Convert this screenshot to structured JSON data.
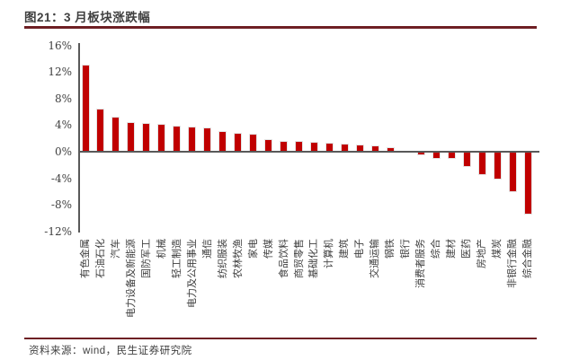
{
  "figure": {
    "title": "图21：3 月板块涨跌幅",
    "source": "资料来源：wind，民生证券研究院"
  },
  "colors": {
    "bar": "#C00000",
    "axis": "#595959",
    "rule": "#6e1f24",
    "text": "#404040"
  },
  "chart_data": {
    "type": "bar",
    "title": "3 月板块涨跌幅",
    "xlabel": "",
    "ylabel": "",
    "ylim": [
      -12,
      16
    ],
    "grid": false,
    "legend": "none",
    "bar_color": "#C00000",
    "yticks": [
      {
        "label": "16%",
        "value": 16
      },
      {
        "label": "12%",
        "value": 12
      },
      {
        "label": "8%",
        "value": 8
      },
      {
        "label": "4%",
        "value": 4
      },
      {
        "label": "0%",
        "value": 0
      },
      {
        "label": "-4%",
        "value": -4
      },
      {
        "label": "-8%",
        "value": -8
      },
      {
        "label": "-12%",
        "value": -12
      }
    ],
    "categories": [
      "有色金属",
      "石油石化",
      "汽车",
      "电力设备及新能源",
      "国防军工",
      "机械",
      "轻工制造",
      "电力及公用事业",
      "通信",
      "纺织服装",
      "农林牧渔",
      "家电",
      "传媒",
      "食品饮料",
      "商贸零售",
      "基础化工",
      "计算机",
      "建筑",
      "电子",
      "交通运输",
      "钢铁",
      "银行",
      "消费者服务",
      "综合",
      "建材",
      "医药",
      "房地产",
      "煤炭",
      "非银行金融",
      "综合金融"
    ],
    "values": [
      13.0,
      6.4,
      5.1,
      4.3,
      4.2,
      4.1,
      3.8,
      3.7,
      3.5,
      3.0,
      2.7,
      2.6,
      1.8,
      1.5,
      1.5,
      1.3,
      1.2,
      1.1,
      0.9,
      0.8,
      0.5,
      0.0,
      -0.4,
      -0.9,
      -1.0,
      -2.2,
      -3.4,
      -4.0,
      -6.0,
      -9.3
    ]
  }
}
